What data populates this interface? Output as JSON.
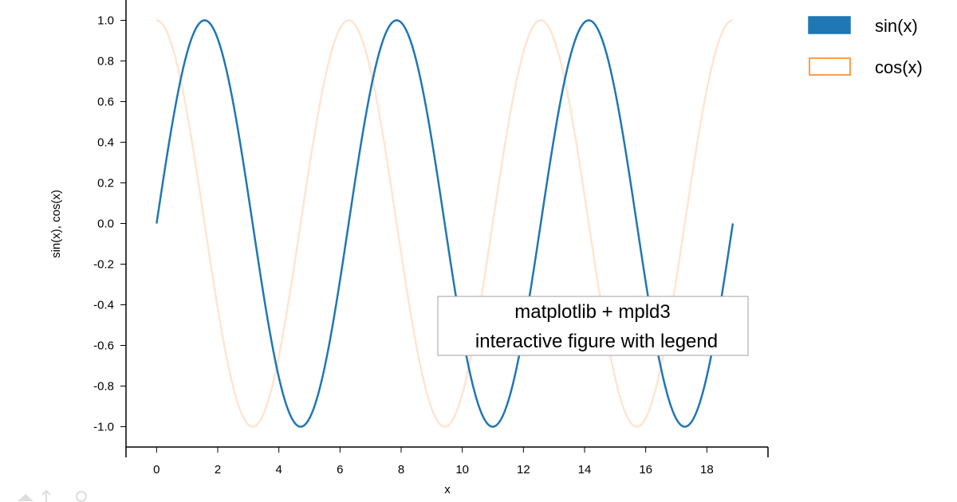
{
  "colors": {
    "sin": "#1f77b4",
    "cos": "#ff7f0e",
    "axis": "#000000"
  },
  "toolbar": {
    "icons": [
      "home-icon",
      "pan-icon",
      "zoom-icon"
    ]
  },
  "chart_data": {
    "type": "line",
    "title": "",
    "xlabel": "x",
    "ylabel": "sin(x), cos(x)",
    "xlim": [
      -1,
      20
    ],
    "ylim": [
      -1.1,
      1.1
    ],
    "x_ticks": [
      0,
      2,
      4,
      6,
      8,
      10,
      12,
      14,
      16,
      18
    ],
    "x_tick_labels": [
      "0",
      "2",
      "4",
      "6",
      "8",
      "10",
      "12",
      "14",
      "16",
      "18"
    ],
    "y_ticks": [
      1.0,
      0.8,
      0.6,
      0.4,
      0.2,
      0.0,
      -0.2,
      -0.4,
      -0.6,
      -0.8,
      -1.0
    ],
    "y_tick_labels": [
      "1.0",
      "0.8",
      "0.6",
      "0.4",
      "0.2",
      "0.0",
      "-0.2",
      "-0.4",
      "-0.6",
      "-0.8",
      "-1.0"
    ],
    "grid": false,
    "legend_position": "outside-top-right",
    "x_range": [
      0,
      18.85
    ],
    "series": [
      {
        "name": "sin(x)",
        "function": "sin",
        "color": "#1f77b4",
        "opacity": 1.0,
        "x": [
          0,
          1.5708,
          3.1416,
          4.7124,
          6.2832,
          7.854,
          9.4248,
          10.9956,
          12.5664,
          14.1372,
          15.708,
          17.2788,
          18.85
        ],
        "values": [
          0,
          1,
          0,
          -1,
          0,
          1,
          0,
          -1,
          0,
          1,
          0,
          -1,
          0
        ]
      },
      {
        "name": "cos(x)",
        "function": "cos",
        "color": "#ff7f0e",
        "opacity": 0.2,
        "x": [
          0,
          1.5708,
          3.1416,
          4.7124,
          6.2832,
          7.854,
          9.4248,
          10.9956,
          12.5664,
          14.1372,
          15.708,
          17.2788,
          18.85
        ],
        "values": [
          1,
          0,
          -1,
          0,
          1,
          0,
          -1,
          0,
          1,
          0,
          -1,
          0,
          1
        ]
      }
    ],
    "annotation": {
      "line1": "matplotlib + mpld3",
      "line2": "interactive figure with legend"
    }
  }
}
